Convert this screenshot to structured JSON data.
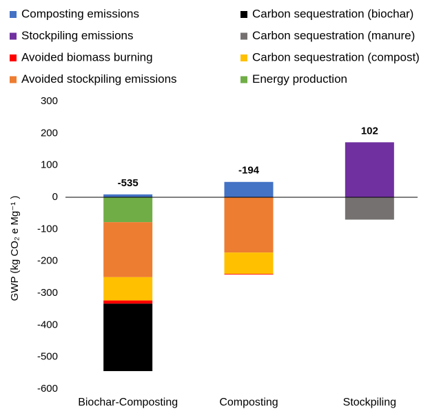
{
  "chart_data": {
    "type": "stacked_bar",
    "y_axis_label": "GWP (kg CO₂ e Mg⁻¹ )",
    "categories": [
      "Biochar-Composting",
      "Composting",
      "Stockpiling"
    ],
    "series": [
      {
        "name": "Composting emissions",
        "color": "#4472c4",
        "values": [
          9,
          48,
          0
        ]
      },
      {
        "name": "Carbon sequestration (biochar)",
        "color": "#000000",
        "values": [
          -211,
          0,
          0
        ]
      },
      {
        "name": "Stockpiling emissions",
        "color": "#7030a0",
        "values": [
          0,
          0,
          172
        ]
      },
      {
        "name": "Carbon sequestration (manure)",
        "color": "#767171",
        "values": [
          0,
          0,
          -70
        ]
      },
      {
        "name": "Avoided biomass burning",
        "color": "#ff0000",
        "values": [
          -10,
          -2,
          0
        ]
      },
      {
        "name": "Carbon sequestration (compost)",
        "color": "#ffc000",
        "values": [
          -73,
          -67,
          0
        ]
      },
      {
        "name": "Avoided stockpiling emissions",
        "color": "#ed7d31",
        "values": [
          -172,
          -173,
          0
        ]
      },
      {
        "name": "Energy production",
        "color": "#70ad47",
        "values": [
          -78,
          0,
          0
        ]
      }
    ],
    "totals": [
      -535,
      -194,
      102
    ],
    "ylim": [
      -600,
      300
    ],
    "yticks": [
      -600,
      -500,
      -400,
      -300,
      -200,
      -100,
      0,
      100,
      200,
      300
    ]
  }
}
